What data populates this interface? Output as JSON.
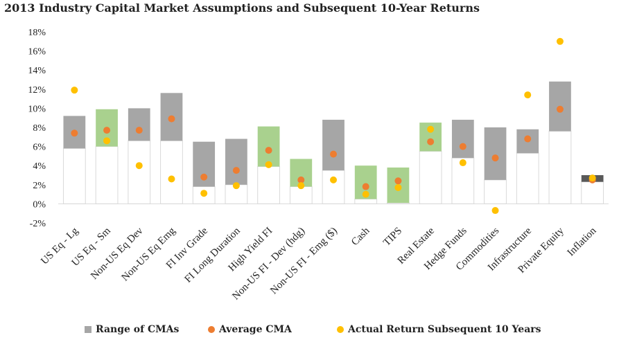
{
  "chart_data": {
    "type": "bar",
    "title": "2013 Industry Capital Market Assumptions and Subsequent 10-Year Returns",
    "ylim": [
      -2,
      18
    ],
    "yticks": [
      "18%",
      "16%",
      "14%",
      "12%",
      "10%",
      "8%",
      "6%",
      "4%",
      "2%",
      "0%",
      "-2%"
    ],
    "ytick_values": [
      18,
      16,
      14,
      12,
      10,
      8,
      6,
      4,
      2,
      0,
      -2
    ],
    "categories": [
      "US Eq - Lg",
      "US Eq - Sm",
      "Non-US Eq Dev",
      "Non-US Eq Emg",
      "FI Inv Grade",
      "FI Long Duration",
      "High Yield FI",
      "Non-US FI - Dev (hdg)",
      "Non-US FI - Emg ($)",
      "Cash",
      "TIPS",
      "Real Estate",
      "Hedge Funds",
      "Commodities",
      "Infrastructure",
      "Private Equity",
      "Inflation"
    ],
    "series": [
      {
        "name": "Range of CMAs",
        "type": "range",
        "low": [
          5.8,
          6.0,
          6.6,
          6.6,
          1.8,
          2.0,
          3.9,
          1.8,
          3.5,
          0.5,
          0.1,
          5.5,
          4.8,
          2.5,
          5.3,
          7.6,
          2.3
        ],
        "high": [
          9.2,
          9.9,
          10.0,
          11.6,
          6.5,
          6.8,
          8.1,
          4.7,
          8.8,
          4.0,
          3.8,
          8.5,
          8.8,
          8.0,
          7.8,
          12.8,
          3.0
        ]
      },
      {
        "name": "Average CMA",
        "type": "scatter",
        "values": [
          7.4,
          7.7,
          7.7,
          8.9,
          2.8,
          3.5,
          5.6,
          2.5,
          5.2,
          1.8,
          2.4,
          6.5,
          6.0,
          4.8,
          6.8,
          9.9,
          2.5
        ]
      },
      {
        "name": "Actual Return Subsequent 10 Years",
        "type": "scatter",
        "values": [
          11.9,
          6.6,
          4.0,
          2.6,
          1.1,
          1.9,
          4.1,
          1.9,
          2.5,
          1.0,
          1.7,
          7.8,
          4.3,
          -0.7,
          11.4,
          17.0,
          2.7
        ]
      }
    ],
    "range_colors": [
      "#a6a6a6",
      "#a9d18e",
      "#a6a6a6",
      "#a6a6a6",
      "#a6a6a6",
      "#a6a6a6",
      "#a9d18e",
      "#a9d18e",
      "#a6a6a6",
      "#a9d18e",
      "#a9d18e",
      "#a9d18e",
      "#a6a6a6",
      "#a6a6a6",
      "#a6a6a6",
      "#a6a6a6",
      "#595959"
    ],
    "colors": {
      "average": "#ed7d31",
      "actual": "#ffc000",
      "range_default": "#a6a6a6",
      "axis": "#d9d9d9",
      "base_outline": "#d9d9d9"
    },
    "grid": false,
    "legend_position": "bottom"
  }
}
